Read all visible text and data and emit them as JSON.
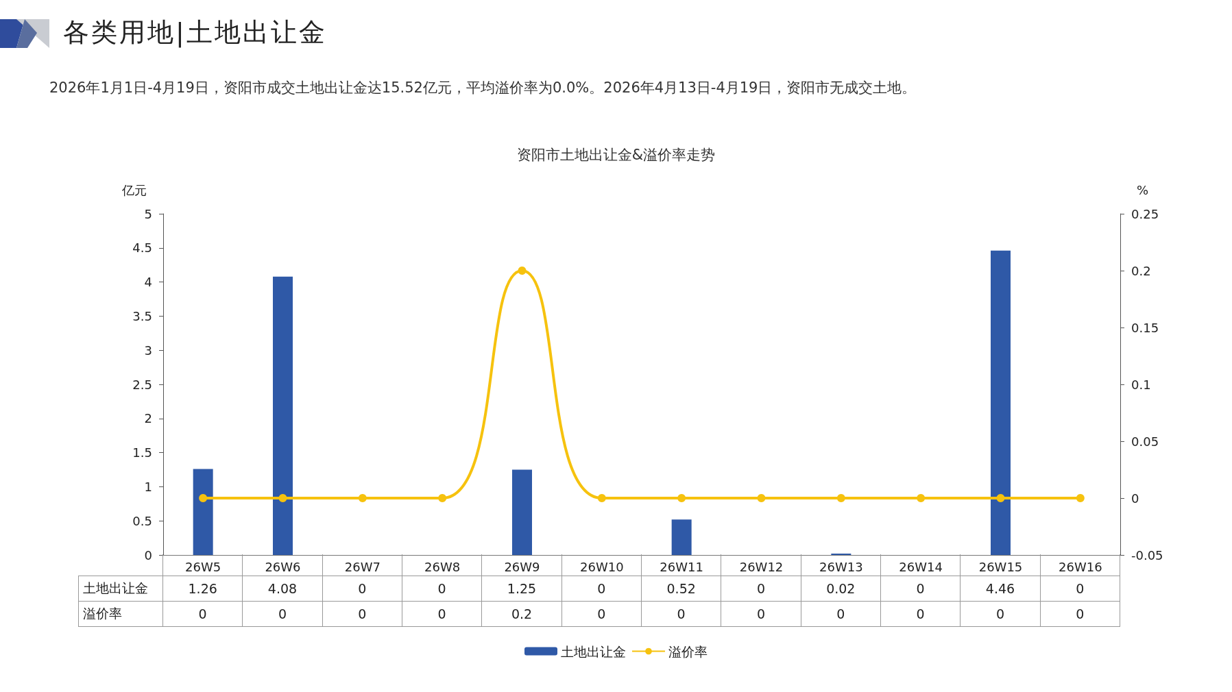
{
  "chart_data": {
    "type": "bar",
    "title": "各类用地|土地出让金",
    "subtitle": "2026年1月1日-4月19日，资阳市成交土地出让金达15.52亿元，平均溢价率为0.0%。2026年4月13日-4月19日，资阳市无成交土地。",
    "annotations": [
      "资阳市土地出让金&溢价率走势"
    ],
    "ylabel": "亿元",
    "y2label": "%",
    "categories": [
      "26W5",
      "26W6",
      "26W7",
      "26W8",
      "26W9",
      "26W10",
      "26W11",
      "26W12",
      "26W13",
      "26W14",
      "26W15",
      "26W16"
    ],
    "series": [
      {
        "name": "土地出让金",
        "color": "#2f59a7",
        "values": [
          1.26,
          4.08,
          0,
          0,
          1.25,
          0,
          0.52,
          0,
          0.02,
          0,
          4.46,
          0
        ]
      },
      {
        "name": "溢价率",
        "type": "line",
        "axis": "y2",
        "color": "#f6c20e",
        "marker": "circle",
        "values": [
          0,
          0,
          0,
          0,
          0.2,
          0,
          0,
          0,
          0,
          0,
          0,
          0
        ]
      }
    ],
    "ylim": [
      0,
      5
    ],
    "yticks": [
      0,
      0.5,
      1,
      1.5,
      2,
      2.5,
      3,
      3.5,
      4,
      4.5,
      5
    ],
    "y2lim": [
      -0.05,
      0.25
    ],
    "y2ticks": [
      -0.05,
      0,
      0.05,
      0.1,
      0.15,
      0.2,
      0.25
    ],
    "grid": false,
    "legend": "bottom",
    "data_labels": true
  }
}
